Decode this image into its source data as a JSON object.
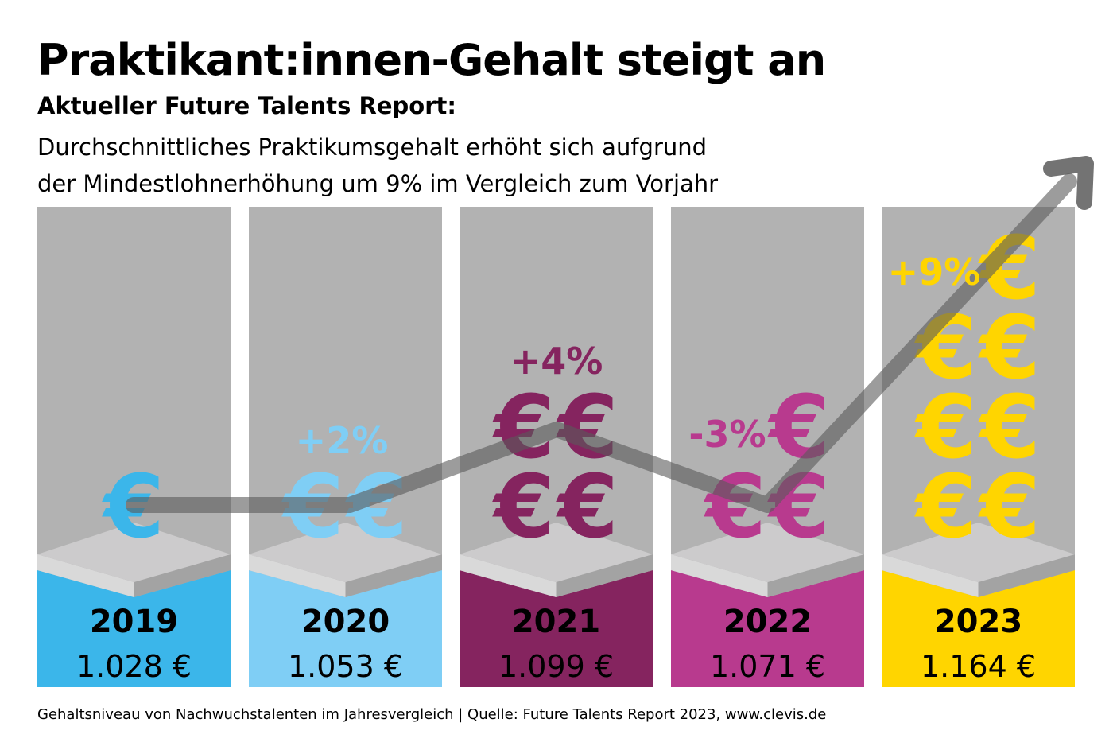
{
  "title": "Praktikant:innen-Gehalt steigt an",
  "subtitle": "Aktueller Future Talents Report:",
  "description_lines": [
    "Durchschnittliches Praktikumsgehalt erhöht sich aufgrund",
    "der Mindestlohnerhöhung um 9% im Vergleich zum Vorjahr"
  ],
  "footer": "Gehaltsniveau von Nachwuchstalenten im Jahresvergleich | Quelle: Future Talents Report 2023, www.clevis.de",
  "chart_data": {
    "type": "bar",
    "title": "Praktikant:innen-Gehalt steigt an",
    "categories": [
      "2019",
      "2020",
      "2021",
      "2022",
      "2023"
    ],
    "values": [
      1028,
      1053,
      1099,
      1071,
      1164
    ],
    "value_labels": [
      "1.028 €",
      "1.053 €",
      "1.099 €",
      "1.071 €",
      "1.164 €"
    ],
    "change_labels": [
      "",
      "+2%",
      "+4%",
      "-3%",
      "+9%"
    ],
    "euro_icon_counts": [
      1,
      2,
      4,
      3,
      7
    ],
    "colors": [
      "#3bb6ea",
      "#7fcef5",
      "#85245f",
      "#b83a8e",
      "#ffd500"
    ],
    "trend_line": "gray arrow rising to the top-right",
    "legend": "none",
    "grid": false
  }
}
